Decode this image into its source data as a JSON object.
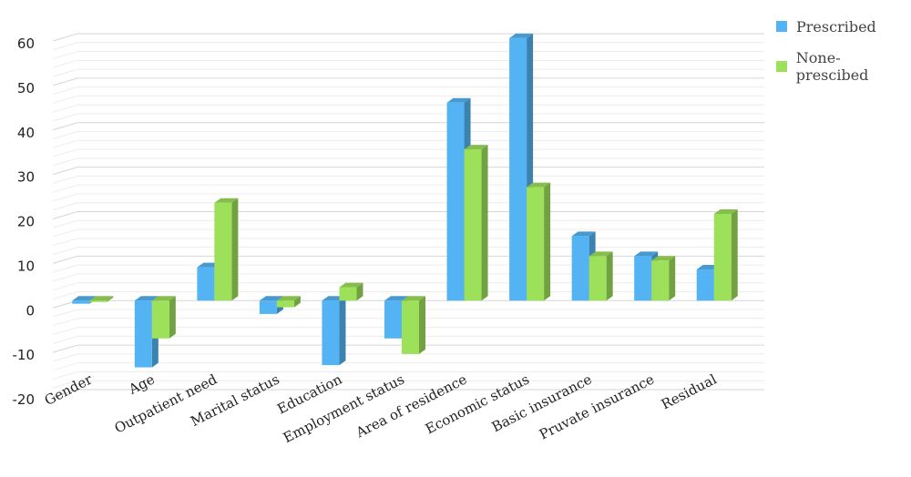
{
  "chart_data": {
    "type": "bar",
    "categories": [
      "Gender",
      "Age",
      "Outpatient need",
      "Marital status",
      "Education",
      "Employment status",
      "Area of residence",
      "Economic status",
      "Basic insurance",
      "Pruvate insurance",
      "Residual"
    ],
    "series": [
      {
        "name": "Prescribed",
        "color": "#54b4f3",
        "values": [
          -0.7,
          -15,
          7.5,
          -3,
          -14.5,
          -8.5,
          44.5,
          59,
          14.5,
          10,
          7
        ]
      },
      {
        "name": "None-prescibed",
        "color": "#9de05a",
        "values": [
          0,
          -8.5,
          22,
          -1.5,
          3,
          -12,
          34,
          25.5,
          10,
          9,
          19.5
        ]
      }
    ],
    "yticks": [
      -20,
      -10,
      0,
      10,
      20,
      30,
      40,
      50,
      60
    ],
    "ylim": [
      -20,
      60
    ],
    "grid": true,
    "legend_position": "top-right"
  }
}
